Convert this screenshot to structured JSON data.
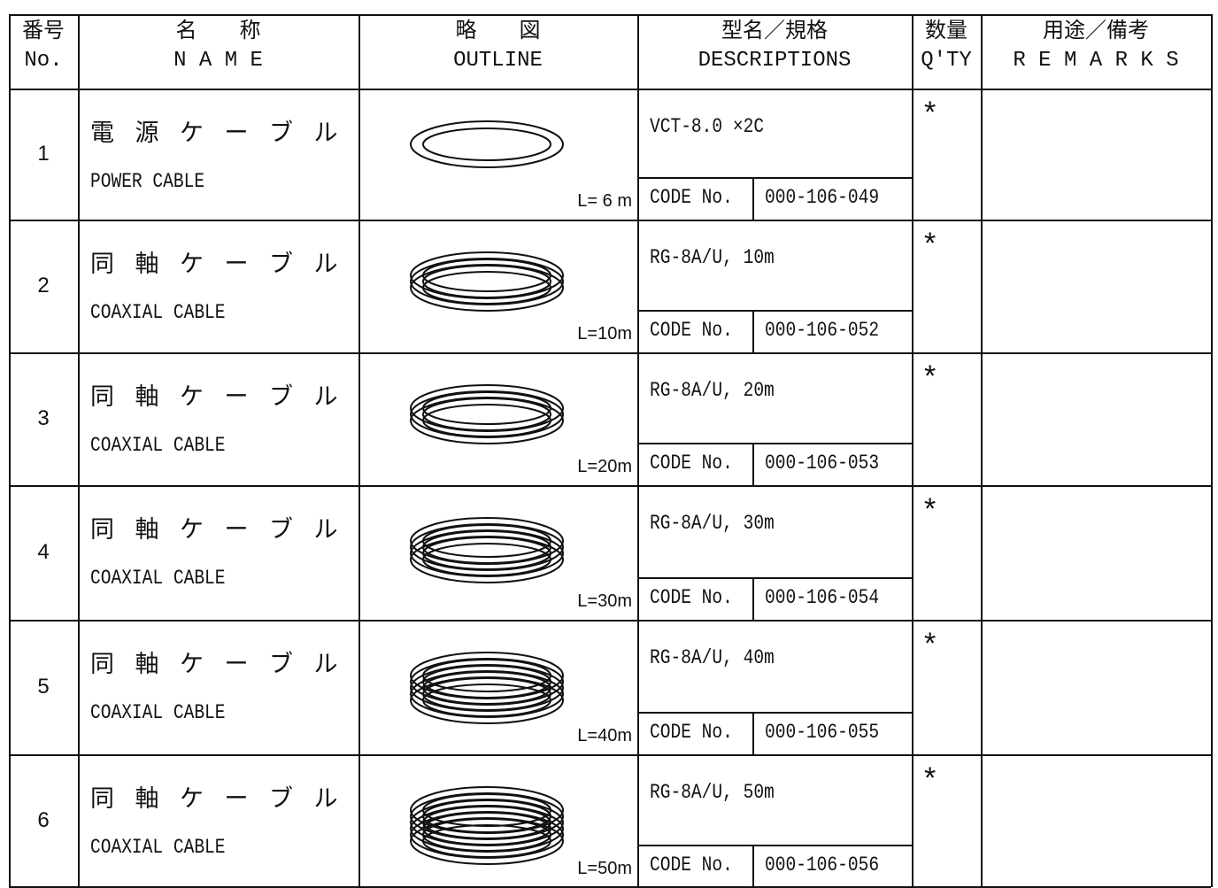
{
  "header": {
    "no": {
      "jp": "番号",
      "en": "No."
    },
    "name": {
      "jp": "名　　称",
      "en": "N A M E"
    },
    "outline": {
      "jp": "略　　図",
      "en": "OUTLINE"
    },
    "description": {
      "jp": "型名／規格",
      "en": "DESCRIPTIONS"
    },
    "qty": {
      "jp": "数量",
      "en": "Q'TY"
    },
    "remarks": {
      "jp": "用途／備考",
      "en": "R E M A R K S"
    }
  },
  "rows": [
    {
      "no": "1",
      "name_jp": "電 源 ケ ー ブ ル",
      "name_en": "POWER CABLE",
      "length": "L= 6 m",
      "description": "VCT-8.0 ×2C",
      "code_label": "CODE No.",
      "code": "000-106-049",
      "qty": "*"
    },
    {
      "no": "2",
      "name_jp": "同 軸 ケ ー ブ ル",
      "name_en": "COAXIAL CABLE",
      "length": "L=10m",
      "description": "RG-8A/U, 10m",
      "code_label": "CODE No.",
      "code": "000-106-052",
      "qty": "*"
    },
    {
      "no": "3",
      "name_jp": "同 軸 ケ ー ブ ル",
      "name_en": "COAXIAL CABLE",
      "length": "L=20m",
      "description": "RG-8A/U, 20m",
      "code_label": "CODE No.",
      "code": "000-106-053",
      "qty": "*"
    },
    {
      "no": "4",
      "name_jp": "同 軸 ケ ー ブ ル",
      "name_en": "COAXIAL CABLE",
      "length": "L=30m",
      "description": "RG-8A/U, 30m",
      "code_label": "CODE No.",
      "code": "000-106-054",
      "qty": "*"
    },
    {
      "no": "5",
      "name_jp": "同 軸 ケ ー ブ ル",
      "name_en": "COAXIAL CABLE",
      "length": "L=40m",
      "description": "RG-8A/U, 40m",
      "code_label": "CODE No.",
      "code": "000-106-055",
      "qty": "*"
    },
    {
      "no": "6",
      "name_jp": "同 軸 ケ ー ブ ル",
      "name_en": "COAXIAL CABLE",
      "length": "L=50m",
      "description": "RG-8A/U, 50m",
      "code_label": "CODE No.",
      "code": "000-106-056",
      "qty": "*"
    }
  ]
}
